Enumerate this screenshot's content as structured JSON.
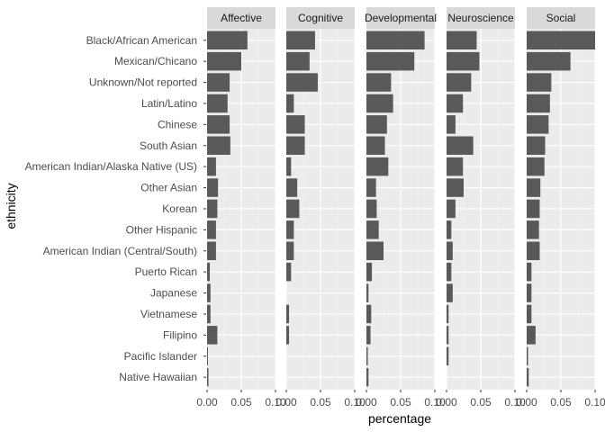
{
  "chart_data": {
    "type": "bar",
    "orientation": "horizontal",
    "facet_by": "area",
    "xlabel": "percentage",
    "ylabel": "ethnicity",
    "xlim": [
      0,
      0.1
    ],
    "x_ticks": [
      "0.00",
      "0.05",
      "0.10"
    ],
    "grid": true,
    "bar_color": "#595959",
    "panel_bg": "#ebebeb",
    "strip_bg": "#d9d9d9",
    "categories": [
      "Black/African American",
      "Mexican/Chicano",
      "Unknown/Not reported",
      "Latin/Latino",
      "Chinese",
      "South Asian",
      "American Indian/Alaska Native (US)",
      "Other Asian",
      "Korean",
      "Other Hispanic",
      "American Indian (Central/South)",
      "Puerto Rican",
      "Japanese",
      "Vietnamese",
      "Filipino",
      "Pacific Islander",
      "Native Hawaiian"
    ],
    "series": [
      {
        "name": "Affective",
        "values": [
          0.059,
          0.05,
          0.033,
          0.03,
          0.033,
          0.034,
          0.013,
          0.016,
          0.015,
          0.013,
          0.013,
          0.004,
          0.005,
          0.005,
          0.015,
          0.001,
          0.002
        ]
      },
      {
        "name": "Cognitive",
        "values": [
          0.042,
          0.034,
          0.046,
          0.011,
          0.027,
          0.027,
          0.007,
          0.016,
          0.019,
          0.011,
          0.011,
          0.007,
          0.0,
          0.004,
          0.004,
          0.0,
          0.0
        ]
      },
      {
        "name": "Developmental",
        "values": [
          0.085,
          0.07,
          0.036,
          0.039,
          0.03,
          0.027,
          0.032,
          0.014,
          0.015,
          0.018,
          0.025,
          0.008,
          0.003,
          0.007,
          0.006,
          0.002,
          0.003
        ]
      },
      {
        "name": "Neuroscience",
        "values": [
          0.044,
          0.048,
          0.036,
          0.024,
          0.013,
          0.039,
          0.024,
          0.025,
          0.013,
          0.007,
          0.009,
          0.007,
          0.009,
          0.003,
          0.003,
          0.003,
          0.0
        ]
      },
      {
        "name": "Social",
        "values": [
          0.1,
          0.064,
          0.036,
          0.034,
          0.032,
          0.027,
          0.026,
          0.02,
          0.019,
          0.018,
          0.019,
          0.007,
          0.007,
          0.007,
          0.013,
          0.002,
          0.003
        ]
      }
    ]
  }
}
